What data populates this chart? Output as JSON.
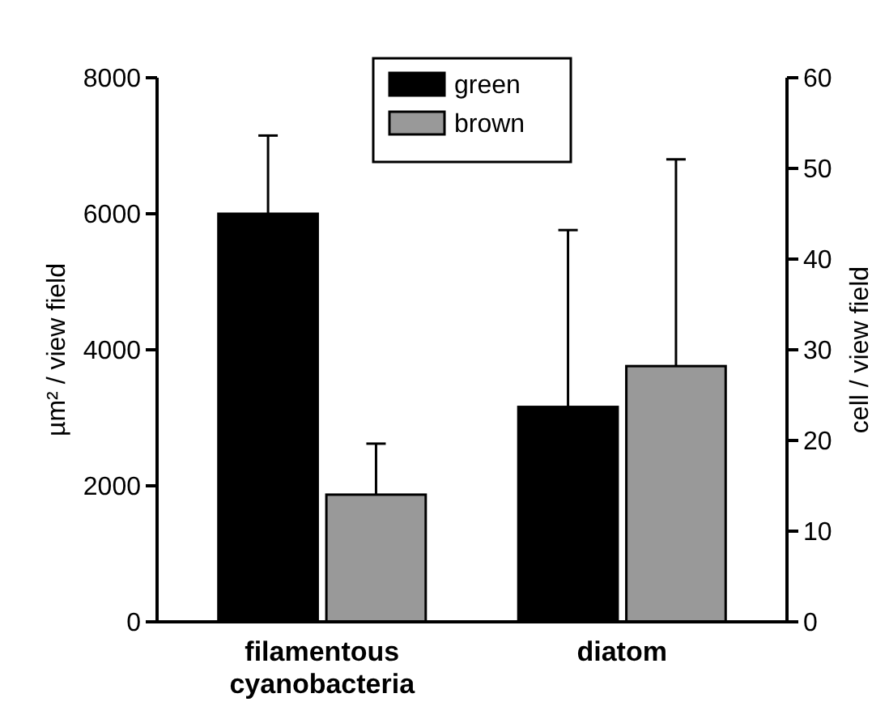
{
  "chart_data": {
    "type": "bar",
    "categories": [
      "filamentous cyanobacteria",
      "diatom"
    ],
    "series": [
      {
        "name": "green",
        "color": "#000000",
        "values": [
          6000,
          null
        ],
        "errors": [
          1150,
          null
        ]
      },
      {
        "name": "brown",
        "color": "#999999",
        "values": [
          1870,
          null
        ],
        "errors": [
          750,
          null
        ]
      },
      {
        "color": "#000000",
        "values": [
          null,
          23.7
        ],
        "errors": [
          null,
          19.5
        ],
        "axis": "y2"
      },
      {
        "color": "#999999",
        "values": [
          null,
          28.2
        ],
        "errors": [
          null,
          22.8
        ],
        "axis": "y2"
      }
    ],
    "ylabel": "µm² / view field",
    "y2label": "cell / view field",
    "ylim": [
      0,
      8000
    ],
    "yticks": [
      0,
      2000,
      4000,
      6000,
      8000
    ],
    "y2lim": [
      0,
      60
    ],
    "y2ticks": [
      0,
      10,
      20,
      30,
      40,
      50,
      60
    ],
    "legend": "top",
    "grid": false
  }
}
